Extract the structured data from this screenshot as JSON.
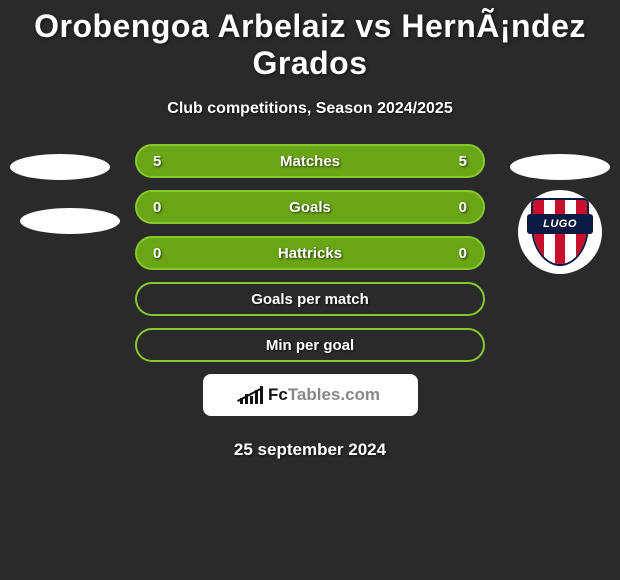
{
  "title": "Orobengoa Arbelaiz vs HernÃ¡ndez Grados",
  "subtitle": "Club competitions, Season 2024/2025",
  "rows": [
    {
      "label": "Matches",
      "left": "5",
      "right": "5",
      "type": "filled",
      "bg": "#6aa515",
      "border": "#86c92a"
    },
    {
      "label": "Goals",
      "left": "0",
      "right": "0",
      "type": "filled",
      "bg": "#6aa515",
      "border": "#86c92a"
    },
    {
      "label": "Hattricks",
      "left": "0",
      "right": "0",
      "type": "filled",
      "bg": "#6aa515",
      "border": "#86c92a"
    },
    {
      "label": "Goals per match",
      "left": "",
      "right": "",
      "type": "outline",
      "bg": "",
      "border": "#86c92a"
    },
    {
      "label": "Min per goal",
      "left": "",
      "right": "",
      "type": "outline",
      "bg": "",
      "border": "#86c92a"
    }
  ],
  "badge": {
    "text": "LUGO",
    "stripe_red": "#c8102e",
    "stripe_white": "#ffffff",
    "band_color": "#0a1a40"
  },
  "logo": {
    "prefix": "Fc",
    "suffix": "Tables.com"
  },
  "date": "25 september 2024",
  "colors": {
    "background": "#2a2a2a",
    "title": "#ffffff",
    "accent_green": "#6aa515"
  }
}
